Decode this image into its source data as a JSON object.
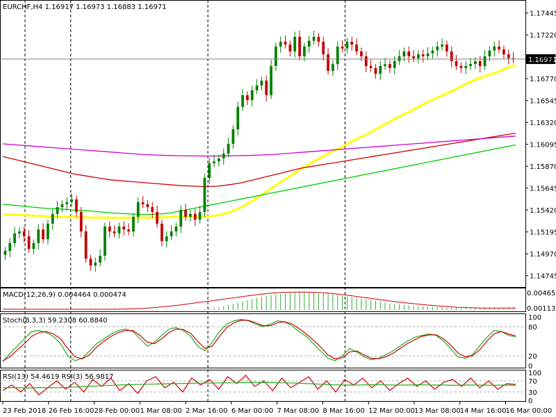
{
  "colors": {
    "background": "#ffffff",
    "bull_candle": "#008000",
    "bear_candle": "#c00000",
    "grid_vline": "#000000",
    "price_line": "#808080",
    "ma_yellow": "#ffff00",
    "ma_green": "#00cc00",
    "ma_red": "#cc0000",
    "ma_magenta": "#cc00cc",
    "macd_hist": "#33aa33",
    "signal": "#cc0000",
    "stoch_main": "#22aa22",
    "stoch_signal": "#cc0000",
    "rsi_fast": "#cc0000",
    "rsi_slow": "#22aa22",
    "level_line": "#aaaaaa"
  },
  "chart_data": [
    {
      "type": "candlestick",
      "title": "EURCHF,H4  1.16917 1.16973 1.16883 1.16971",
      "symbol": "EURCHF",
      "timeframe": "H4",
      "ohlc_header": [
        "1.16917",
        "1.16973",
        "1.16883",
        "1.16971"
      ],
      "current_price_label": "1.16971",
      "current_price": 1.16971,
      "ylim": [
        1.1465,
        1.1755
      ],
      "y_ticks": [
        "1.17445",
        "1.17220",
        "1.16995",
        "1.16770",
        "1.16545",
        "1.16320",
        "1.16095",
        "1.15870",
        "1.15645",
        "1.15420",
        "1.15195",
        "1.14970",
        "1.14745"
      ],
      "x_ticks": [
        "23 Feb 2018",
        "26 Feb 16:00",
        "28 Feb 00:00",
        "1 Mar 08:00",
        "2 Mar 16:00",
        "6 Mar 00:00",
        "7 Mar 08:00",
        "8 Mar 16:00",
        "12 Mar 00:00",
        "13 Mar 08:00",
        "14 Mar 16:00",
        "16 Mar 00:00"
      ],
      "period_separators": [
        "23 Feb 2018",
        "26 Feb 16:00",
        "2 Mar 16:00",
        "8 Mar 16:00"
      ],
      "close": [
        1.15,
        1.1508,
        1.1518,
        1.152,
        1.1515,
        1.1502,
        1.1508,
        1.1522,
        1.1512,
        1.1528,
        1.1538,
        1.1545,
        1.1548,
        1.155,
        1.1553,
        1.154,
        1.152,
        1.1492,
        1.1485,
        1.1488,
        1.1495,
        1.1525,
        1.152,
        1.1518,
        1.1525,
        1.1522,
        1.152,
        1.1535,
        1.155,
        1.1548,
        1.1545,
        1.154,
        1.1528,
        1.151,
        1.1515,
        1.152,
        1.1525,
        1.1542,
        1.1535,
        1.1538,
        1.1532,
        1.154,
        1.1575,
        1.159,
        1.1592,
        1.1595,
        1.16,
        1.161,
        1.1625,
        1.1648,
        1.166,
        1.1655,
        1.1665,
        1.167,
        1.1675,
        1.166,
        1.169,
        1.171,
        1.1715,
        1.1712,
        1.1705,
        1.172,
        1.17,
        1.171,
        1.1716,
        1.172,
        1.1715,
        1.1702,
        1.1685,
        1.1692,
        1.171,
        1.1708,
        1.1715,
        1.1712,
        1.1705,
        1.17,
        1.169,
        1.1688,
        1.1682,
        1.169,
        1.1692,
        1.1688,
        1.1695,
        1.17,
        1.1705,
        1.17,
        1.1698,
        1.1702,
        1.17,
        1.1703,
        1.1706,
        1.171,
        1.1712,
        1.1705,
        1.1695,
        1.169,
        1.1688,
        1.169,
        1.1692,
        1.1695,
        1.169,
        1.17,
        1.1706,
        1.171,
        1.1707,
        1.1702,
        1.1698,
        1.1697
      ],
      "series": [
        {
          "name": "",
          "color": "#ffff00",
          "values": [
            1.15375,
            1.15373,
            1.15368,
            1.15365,
            1.1536,
            1.15355,
            1.1535,
            1.15348,
            1.15346,
            1.15344,
            1.15343,
            1.15342,
            1.15341,
            1.1534,
            1.1534,
            1.15341,
            1.15342,
            1.15343,
            1.15345,
            1.15348,
            1.1535,
            1.15352,
            1.15353,
            1.15355,
            1.1536,
            1.1538,
            1.1541,
            1.1545,
            1.155,
            1.1556,
            1.1562,
            1.1568,
            1.1574,
            1.158,
            1.1586,
            1.1591,
            1.1596,
            1.1601,
            1.1605,
            1.161,
            1.1615,
            1.1619,
            1.1624,
            1.1629,
            1.1634,
            1.1639,
            1.1643,
            1.1648,
            1.1653,
            1.1657,
            1.1661,
            1.1665,
            1.167,
            1.1674,
            1.1678,
            1.1681,
            1.1684,
            1.1688,
            1.1691
          ]
        },
        {
          "name": "",
          "color": "#00cc00",
          "values": [
            1.1548,
            1.1547,
            1.1546,
            1.1545,
            1.1544,
            1.15435,
            1.1543,
            1.1542,
            1.15415,
            1.1541,
            1.154,
            1.1539,
            1.15385,
            1.1538,
            1.15375,
            1.15375,
            1.1538,
            1.1539,
            1.1541,
            1.1543,
            1.1545,
            1.1547,
            1.1549,
            1.1551,
            1.1553,
            1.1555,
            1.1557,
            1.1559,
            1.1561,
            1.1563,
            1.1565,
            1.1567,
            1.1569,
            1.1571,
            1.1573,
            1.1575,
            1.1577,
            1.1579,
            1.1581,
            1.1583,
            1.1585,
            1.1587,
            1.1589,
            1.1591,
            1.1593,
            1.1595,
            1.1597,
            1.1599,
            1.1601,
            1.1603,
            1.1605,
            1.1607,
            1.1609
          ]
        },
        {
          "name": "",
          "color": "#cc0000",
          "values": [
            1.1597,
            1.1594,
            1.1591,
            1.1588,
            1.1585,
            1.1582,
            1.1579,
            1.1577,
            1.1575,
            1.1573,
            1.1572,
            1.1571,
            1.157,
            1.1569,
            1.1568,
            1.1567,
            1.15665,
            1.1566,
            1.15665,
            1.1568,
            1.157,
            1.1573,
            1.1576,
            1.1579,
            1.1582,
            1.1585,
            1.1587,
            1.1589,
            1.1591,
            1.1593,
            1.1595,
            1.1597,
            1.1599,
            1.1601,
            1.1603,
            1.1605,
            1.1607,
            1.1609,
            1.1611,
            1.1613,
            1.1615,
            1.1617,
            1.1619,
            1.1621
          ]
        },
        {
          "name": "",
          "color": "#cc00cc",
          "values": [
            1.161,
            1.1609,
            1.1608,
            1.1607,
            1.1606,
            1.1605,
            1.1604,
            1.1603,
            1.1602,
            1.1601,
            1.16,
            1.1599,
            1.15985,
            1.1598,
            1.15978,
            1.15976,
            1.15975,
            1.15976,
            1.15978,
            1.1598,
            1.15985,
            1.1599,
            1.16,
            1.1601,
            1.1602,
            1.1603,
            1.1604,
            1.1605,
            1.1606,
            1.1607,
            1.1608,
            1.1609,
            1.161,
            1.1611,
            1.1612,
            1.1613,
            1.1614,
            1.1615,
            1.1616,
            1.1617,
            1.1618
          ]
        }
      ]
    },
    {
      "type": "histogram",
      "title": "MACD(12,26,9) 0.004464 0.000474",
      "y_ticks": [
        "0.004656",
        "0.001138"
      ],
      "ylim": [
        0,
        0.005
      ],
      "values": [
        0.0001,
        0.0001,
        0.0001,
        0.0001,
        0.0001,
        0.0001,
        0.0001,
        0.0001,
        0.0001,
        0.0001,
        0.0001,
        0.0001,
        0.0001,
        0.0001,
        0.0001,
        0.0001,
        0.0001,
        0.0001,
        0.0001,
        0.0001,
        0.0001,
        0.0001,
        0.0001,
        0.0001,
        0.0001,
        0.0001,
        0.0001,
        0.0001,
        0.0001,
        0.0001,
        0.0001,
        0.0001,
        0.0001,
        0.0001,
        0.0001,
        0.0001,
        0.0001,
        0.0001,
        0.0001,
        0.0001,
        0.0001,
        0.0001,
        0.0002,
        0.0004,
        0.0006,
        0.0008,
        0.001,
        0.0013,
        0.0016,
        0.0019,
        0.0022,
        0.0025,
        0.0028,
        0.0031,
        0.0034,
        0.0036,
        0.0038,
        0.004,
        0.0042,
        0.0043,
        0.0044,
        0.0045,
        0.0045,
        0.0045,
        0.0044,
        0.0044,
        0.0043,
        0.0042,
        0.0041,
        0.004,
        0.0038,
        0.0037,
        0.0035,
        0.0033,
        0.0031,
        0.0029,
        0.0027,
        0.0025,
        0.0023,
        0.0021,
        0.0019,
        0.0017,
        0.0016,
        0.0014,
        0.0013,
        0.0012,
        0.0011,
        0.001,
        0.0009,
        0.0008,
        0.0008,
        0.0007,
        0.0007,
        0.0006,
        0.0006,
        0.0006,
        0.0005,
        0.0005,
        0.0005,
        0.0005,
        0.0005,
        0.0005,
        0.0005,
        0.0005,
        0.0005,
        0.0005,
        0.0005,
        0.0005
      ],
      "signal": [
        0.0002,
        0.0002,
        0.0002,
        0.0002,
        0.0002,
        0.0002,
        0.0002,
        0.0002,
        0.0002,
        0.0002,
        0.0002,
        0.0003,
        0.0004,
        0.0006,
        0.0009,
        0.0012,
        0.0016,
        0.002,
        0.0024,
        0.0028,
        0.0032,
        0.0036,
        0.004,
        0.0043,
        0.0045,
        0.0046,
        0.0046,
        0.0045,
        0.0043,
        0.004,
        0.0036,
        0.0032,
        0.0028,
        0.0024,
        0.002,
        0.0017,
        0.0014,
        0.0011,
        0.0009,
        0.0007,
        0.0006,
        0.0005,
        0.0005,
        0.0005,
        0.0005
      ]
    },
    {
      "type": "line",
      "title": "Stoch(8,3,3) 59.2308 60.8840",
      "ylim": [
        0,
        100
      ],
      "y_ticks": [
        "100",
        "80",
        "20",
        "0"
      ],
      "levels": [
        80,
        20
      ],
      "series": [
        {
          "name": "",
          "color": "#22aa22",
          "values": [
            8,
            25,
            40,
            55,
            70,
            72,
            68,
            60,
            45,
            20,
            10,
            15,
            30,
            45,
            55,
            65,
            72,
            75,
            70,
            55,
            40,
            48,
            62,
            75,
            78,
            72,
            60,
            40,
            30,
            48,
            70,
            85,
            92,
            95,
            92,
            85,
            80,
            85,
            92,
            90,
            82,
            70,
            60,
            45,
            30,
            15,
            10,
            20,
            35,
            28,
            18,
            12,
            15,
            22,
            30,
            40,
            50,
            58,
            62,
            65,
            62,
            50,
            35,
            18,
            15,
            22,
            40,
            58,
            72,
            70,
            62,
            59
          ]
        },
        {
          "name": "",
          "color": "#cc0000",
          "values": [
            10,
            18,
            32,
            45,
            60,
            68,
            70,
            65,
            55,
            35,
            18,
            14,
            22,
            38,
            50,
            60,
            68,
            72,
            72,
            62,
            48,
            45,
            55,
            68,
            75,
            74,
            66,
            50,
            35,
            40,
            60,
            78,
            88,
            93,
            93,
            88,
            82,
            82,
            88,
            90,
            86,
            76,
            65,
            52,
            38,
            22,
            14,
            16,
            28,
            30,
            22,
            15,
            14,
            18,
            25,
            35,
            45,
            53,
            60,
            63,
            63,
            55,
            42,
            26,
            18,
            20,
            32,
            50,
            65,
            70,
            65,
            61
          ]
        }
      ]
    },
    {
      "type": "line",
      "title": "RSI(13) 54.4619  RSI(3) 56.9817",
      "ylim": [
        0,
        100
      ],
      "y_ticks": [
        "100",
        "70",
        "30",
        "0"
      ],
      "levels": [
        70,
        30
      ],
      "series": [
        {
          "name": "",
          "color": "#cc0000",
          "values": [
            35,
            55,
            30,
            60,
            20,
            45,
            70,
            40,
            65,
            30,
            75,
            50,
            80,
            35,
            60,
            25,
            70,
            85,
            45,
            65,
            30,
            80,
            55,
            75,
            40,
            85,
            60,
            90,
            50,
            70,
            35,
            80,
            45,
            65,
            85,
            40,
            70,
            30,
            75,
            55,
            80,
            45,
            70,
            35,
            60,
            80,
            50,
            70,
            40,
            65,
            75,
            50,
            80,
            45,
            70,
            40,
            60,
            57
          ]
        },
        {
          "name": "",
          "color": "#22aa22",
          "values": [
            45,
            46,
            44,
            46,
            45,
            46,
            48,
            50,
            52,
            54,
            56,
            57,
            58,
            59,
            60,
            61,
            62,
            62,
            63,
            63,
            64,
            64,
            64,
            63,
            62,
            60,
            58,
            56,
            55,
            55,
            56,
            56,
            55,
            55,
            56,
            55,
            55,
            54,
            55,
            55,
            54,
            55,
            54
          ]
        }
      ]
    }
  ]
}
